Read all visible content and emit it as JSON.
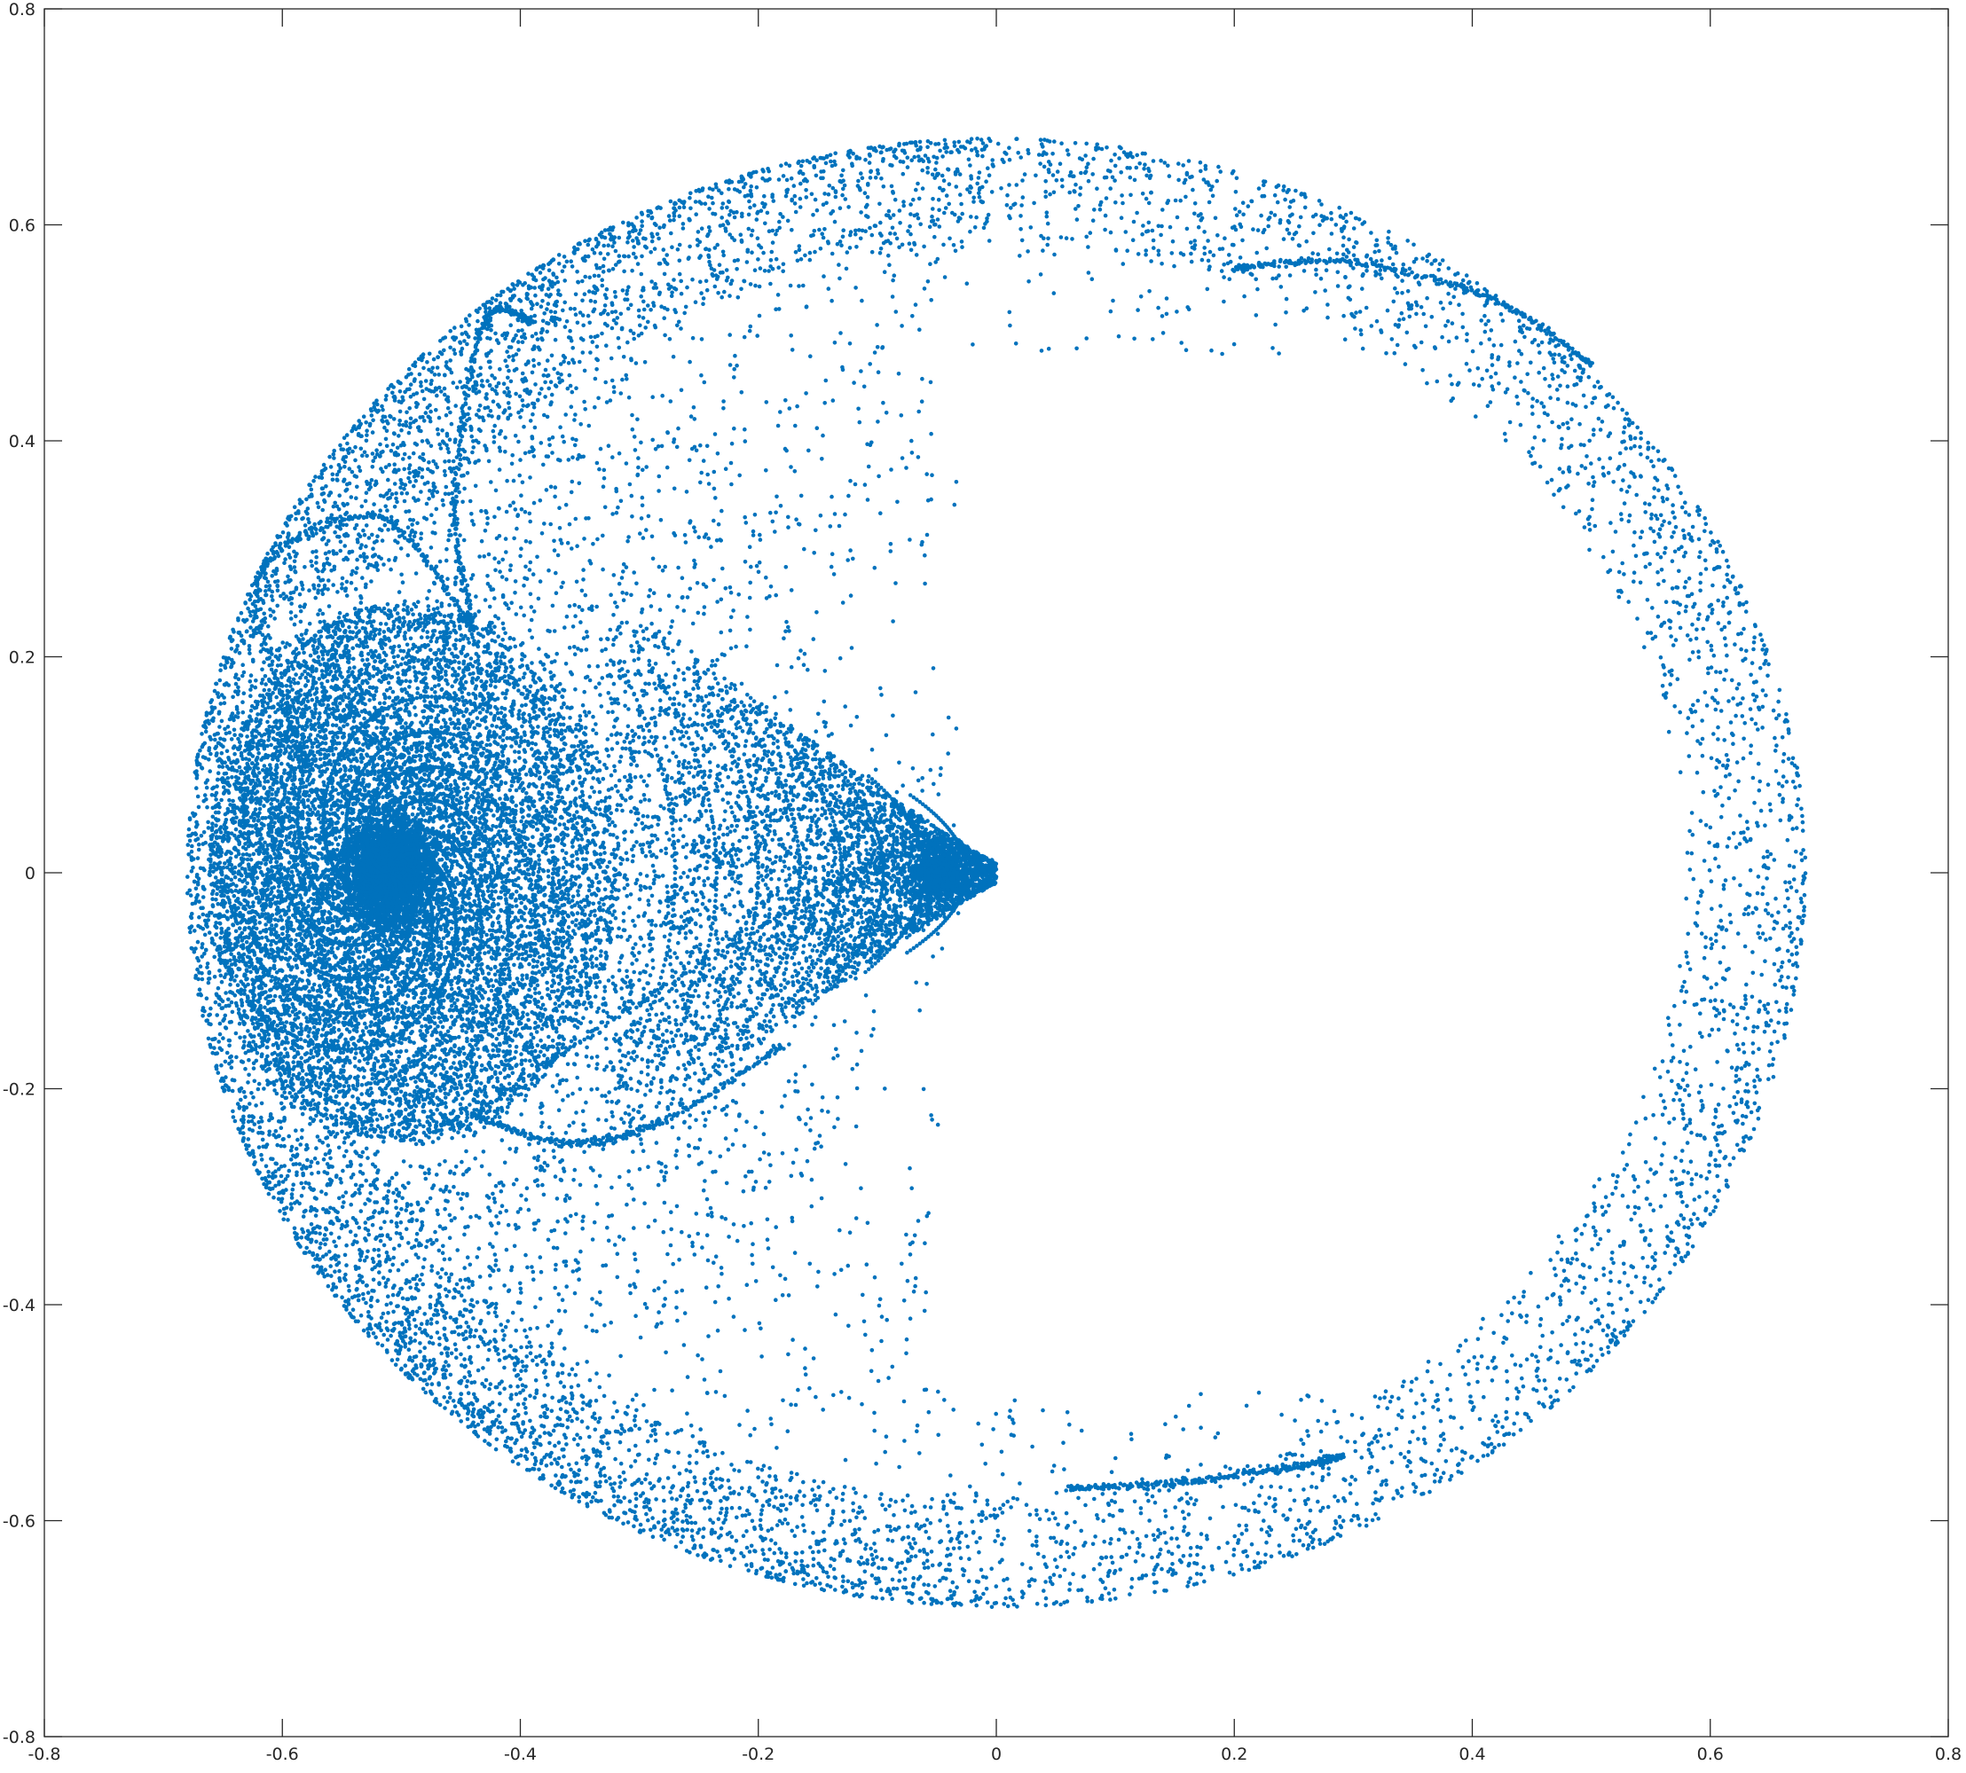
{
  "chart_data": {
    "type": "scatter",
    "title": "",
    "xlabel": "",
    "ylabel": "",
    "xlim": [
      -0.8,
      0.8
    ],
    "ylim": [
      -0.8,
      0.8
    ],
    "x_ticks": [
      -0.8,
      -0.6,
      -0.4,
      -0.2,
      0,
      0.2,
      0.4,
      0.6,
      0.8
    ],
    "y_ticks": [
      -0.8,
      -0.6,
      -0.4,
      -0.2,
      0,
      0.2,
      0.4,
      0.6,
      0.8
    ],
    "x_tick_labels": [
      "-0.8",
      "-0.6",
      "-0.4",
      "-0.2",
      "0",
      "0.2",
      "0.4",
      "0.6",
      "0.8"
    ],
    "y_tick_labels": [
      "-0.8",
      "-0.6",
      "-0.4",
      "-0.2",
      "0",
      "0.2",
      "0.4",
      "0.6",
      "0.8"
    ],
    "grid": false,
    "box": true,
    "legend": "none",
    "marker_color": "#0072BD",
    "axis_color": "#262626",
    "series": [
      {
        "structure": "bounding_ring",
        "center": [
          0.0,
          0.0
        ],
        "radius": 0.68,
        "thickness": 0.1,
        "density": "medium"
      },
      {
        "structure": "left_island_spiral",
        "center": [
          -0.51,
          0.0
        ],
        "radius_x": 0.17,
        "radius_y": 0.25,
        "density": "very_high"
      },
      {
        "structure": "left_island_gap_ring",
        "center": [
          -0.51,
          0.0
        ],
        "radius_x": 0.185,
        "radius_y": 0.26,
        "density": "empty"
      },
      {
        "structure": "tongue_to_origin",
        "points": [
          [
            -0.3,
            0.0
          ],
          [
            -0.12,
            0.0
          ],
          [
            -0.04,
            0.0
          ],
          [
            0.0,
            0.0
          ]
        ],
        "density": "high"
      },
      {
        "structure": "hyperbolic_points",
        "points": [
          [
            -0.44,
            0.225
          ],
          [
            -0.44,
            -0.225
          ]
        ]
      },
      {
        "structure": "manifold_curves",
        "curves": [
          [
            [
              -0.44,
              0.225
            ],
            [
              -0.455,
              0.35
            ],
            [
              -0.43,
              0.51
            ],
            [
              -0.39,
              0.51
            ]
          ],
          [
            [
              -0.44,
              0.225
            ],
            [
              -0.52,
              0.33
            ],
            [
              -0.62,
              0.27
            ],
            [
              -0.58,
              0.1
            ]
          ],
          [
            [
              -0.44,
              -0.225
            ],
            [
              -0.3,
              -0.12
            ],
            [
              -0.12,
              0.0
            ],
            [
              -0.04,
              0.03
            ],
            [
              -0.01,
              0.0
            ]
          ],
          [
            [
              -0.44,
              -0.225
            ],
            [
              -0.36,
              -0.25
            ],
            [
              -0.28,
              -0.23
            ],
            [
              -0.18,
              -0.16
            ]
          ],
          [
            [
              0.2,
              0.56
            ],
            [
              0.3,
              0.565
            ],
            [
              0.42,
              0.53
            ],
            [
              0.5,
              0.47
            ]
          ],
          [
            [
              0.06,
              -0.57
            ],
            [
              0.15,
              -0.565
            ],
            [
              0.25,
              -0.55
            ],
            [
              0.29,
              -0.54
            ]
          ]
        ]
      },
      {
        "structure": "sparse_outer_band",
        "angles_deg": [
          [
            30,
            150
          ],
          [
            210,
            330
          ]
        ],
        "radius_range": [
          0.3,
          0.68
        ],
        "density": "low"
      }
    ]
  }
}
